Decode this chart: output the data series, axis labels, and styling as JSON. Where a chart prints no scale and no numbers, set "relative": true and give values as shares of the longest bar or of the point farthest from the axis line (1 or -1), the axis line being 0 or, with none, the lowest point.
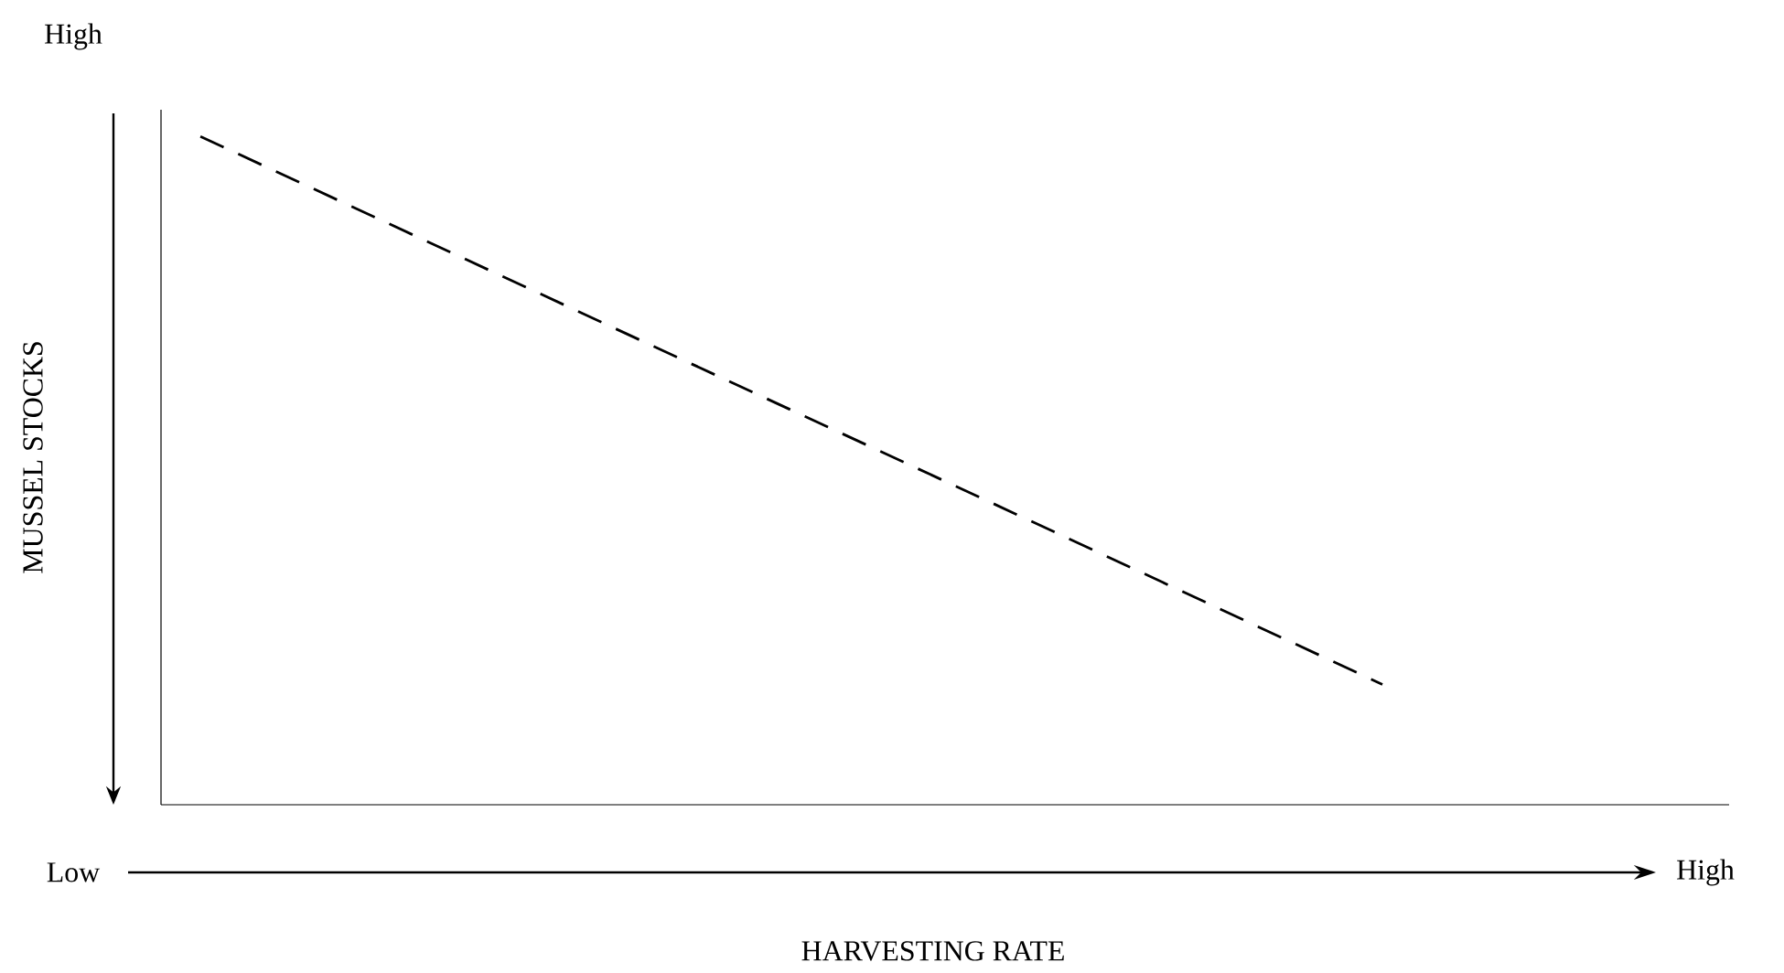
{
  "chart_data": {
    "type": "line",
    "relative": true,
    "xlabel": "HARVESTING RATE",
    "ylabel": "MUSSEL STOCKS",
    "annotations": [
      "High",
      "Low",
      "High"
    ],
    "categories": [
      null,
      null,
      null,
      null,
      null
    ],
    "series": [
      {
        "color": "#000000",
        "values": [
          1,
          0.727,
          0.454,
          0.18,
          null
        ]
      }
    ],
    "line_style": "dashed",
    "marker": "none"
  }
}
